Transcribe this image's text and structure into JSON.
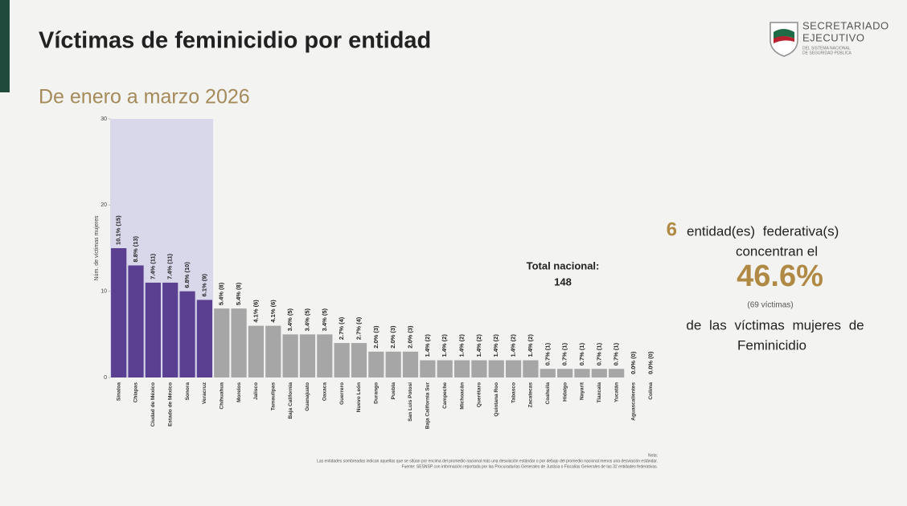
{
  "header": {
    "title": "Víctimas de feminicidio por entidad",
    "subtitle": "De enero a marzo 2026"
  },
  "logo": {
    "line1": "SECRETARIADO",
    "line2": "EJECUTIVO",
    "line3": "DEL SISTEMA NACIONAL",
    "line4": "DE SEGURIDAD PÚBLICA"
  },
  "chart_data": {
    "type": "bar",
    "y_label": "Núm. de víctimas mujeres",
    "categories": [
      "Sinaloa",
      "Chiapas",
      "Ciudad de México",
      "Estado de México",
      "Sonora",
      "Veracruz",
      "Chihuahua",
      "Morelos",
      "Jalisco",
      "Tamaulipas",
      "Baja California",
      "Guanajuato",
      "Oaxaca",
      "Guerrero",
      "Nuevo León",
      "Durango",
      "Puebla",
      "San Luis Potosí",
      "Baja California Sur",
      "Campeche",
      "Michoacán",
      "Querétaro",
      "Quintana Roo",
      "Tabasco",
      "Zacatecas",
      "Coahuila",
      "Hidalgo",
      "Nayarit",
      "Tlaxcala",
      "Yucatán",
      "Aguascalientes",
      "Colima"
    ],
    "values": [
      15,
      13,
      11,
      11,
      10,
      9,
      8,
      8,
      6,
      6,
      5,
      5,
      5,
      4,
      4,
      3,
      3,
      3,
      2,
      2,
      2,
      2,
      2,
      2,
      2,
      1,
      1,
      1,
      1,
      1,
      0,
      0
    ],
    "value_labels": [
      "10.1% (15)",
      "8.8% (13)",
      "7.4% (11)",
      "7.4% (11)",
      "6.8% (10)",
      "6.1% (9)",
      "5.4% (8)",
      "5.4% (8)",
      "4.1% (6)",
      "4.1% (6)",
      "3.4% (5)",
      "3.4% (5)",
      "3.4% (5)",
      "2.7% (4)",
      "2.7% (4)",
      "2.0% (3)",
      "2.0% (3)",
      "2.0% (3)",
      "1.4% (2)",
      "1.4% (2)",
      "1.4% (2)",
      "1.4% (2)",
      "1.4% (2)",
      "1.4% (2)",
      "1.4% (2)",
      "0.7% (1)",
      "0.7% (1)",
      "0.7% (1)",
      "0.7% (1)",
      "0.7% (1)",
      "0.0% (0)",
      "0.0% (0)"
    ],
    "colors": [
      "#5b3f91",
      "#5b3f91",
      "#5b3f91",
      "#5b3f91",
      "#5b3f91",
      "#5b3f91",
      "#a6a6a6",
      "#a6a6a6",
      "#a6a6a6",
      "#a6a6a6",
      "#a6a6a6",
      "#a6a6a6",
      "#a6a6a6",
      "#a6a6a6",
      "#a6a6a6",
      "#a6a6a6",
      "#a6a6a6",
      "#a6a6a6",
      "#a6a6a6",
      "#a6a6a6",
      "#a6a6a6",
      "#a6a6a6",
      "#a6a6a6",
      "#a6a6a6",
      "#a6a6a6",
      "#a6a6a6",
      "#a6a6a6",
      "#a6a6a6",
      "#a6a6a6",
      "#a6a6a6",
      "#a6a6a6",
      "#a6a6a6"
    ],
    "highlight_color": "#5b3f91",
    "highlight_background": "#d9d7ea",
    "ylim": [
      0,
      30
    ],
    "yticks": [
      0,
      10,
      20,
      30
    ],
    "total_label": "Total nacional:",
    "total": 148
  },
  "summary": {
    "count": "6",
    "line1": "entidad(es) federativa(s)",
    "line2": "concentran el",
    "percent": "46.6%",
    "victims": "(69 víctimas)",
    "line3": "de las víctimas mujeres de",
    "line4": "Feminicidio"
  },
  "notes": {
    "label": "Nota:",
    "note": "Las entidades sombreadas indican aquellas que se sitúan por encima del promedio nacional más una desviación estándar o por debajo del promedio nacional menos una desviación estándar.",
    "source": "Fuente: SESNSP con información reportada por las Procuradurías Generales de Justicia o Fiscalías Generales de las 32 entidades federativas."
  }
}
